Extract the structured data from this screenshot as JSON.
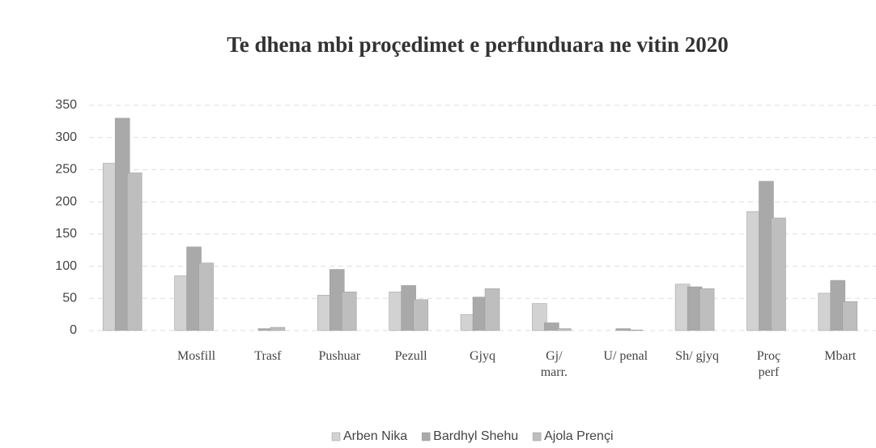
{
  "chart_data": {
    "type": "bar",
    "title": "Te dhena mbi proçedimet e perfunduara ne vitin 2020",
    "categories": [
      null,
      "Mosfill",
      "Trasf",
      "Pushuar",
      "Pezull",
      "Gjyq",
      "Gj/ marr.",
      "U/ penal",
      "Sh/ gjyq",
      "Proç perf",
      "Mbart"
    ],
    "series": [
      {
        "name": "Arben Nika",
        "color": "#d2d2d2",
        "values": [
          260,
          85,
          0,
          55,
          60,
          25,
          42,
          0,
          72,
          185,
          58
        ]
      },
      {
        "name": "Bardhyl Shehu",
        "color": "#a9a9a9",
        "values": [
          330,
          130,
          3,
          95,
          70,
          52,
          12,
          3,
          68,
          232,
          78
        ]
      },
      {
        "name": "Ajola Prençi",
        "color": "#bebebe",
        "values": [
          245,
          105,
          5,
          60,
          48,
          65,
          3,
          1,
          65,
          175,
          45
        ]
      }
    ],
    "ylim": [
      0,
      350
    ],
    "yticks": [
      0,
      50,
      100,
      150,
      200,
      250,
      300,
      350
    ],
    "grid": true,
    "legend": "bottom"
  }
}
